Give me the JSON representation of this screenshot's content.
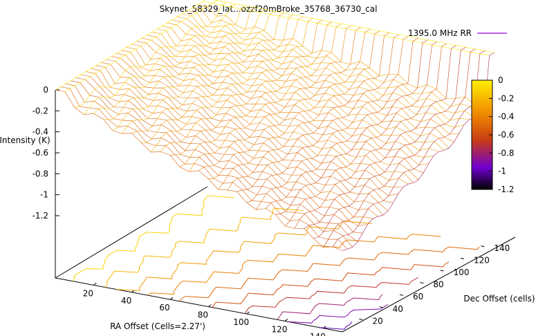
{
  "chart_data": {
    "type": "surface3d",
    "title": "Skynet_58329_lat...ozzf20mBroke_35768_36730_cal",
    "xlabel": "RA Offset (Cells=2.27')",
    "ylabel": "Dec Offset (cells)",
    "zlabel": "Intensity (K)",
    "legend_label": "1395.0 MHz RR",
    "x_ticks": [
      20,
      40,
      60,
      80,
      100,
      120,
      140
    ],
    "y_ticks": [
      20,
      40,
      60,
      80,
      100,
      120,
      140
    ],
    "z_ticks": [
      0,
      -0.2,
      -0.4,
      -0.6,
      -0.8,
      -1,
      -1.2
    ],
    "colorbar_ticks": [
      0,
      -0.2,
      -0.4,
      -0.6,
      -0.8,
      -1,
      -1.2
    ],
    "xlim": [
      0,
      150
    ],
    "ylim": [
      0,
      150
    ],
    "zlim": [
      -1.2,
      0
    ],
    "contour_levels": [
      -0.1,
      -0.2,
      -0.3,
      -0.4,
      -0.5,
      -0.6,
      -0.7,
      -0.8,
      -0.9,
      -1.0
    ]
  },
  "colors": {
    "high": "#ffee00",
    "mid": "#c83c14",
    "low": "#6400c8",
    "legend_line": "#9400d3"
  }
}
